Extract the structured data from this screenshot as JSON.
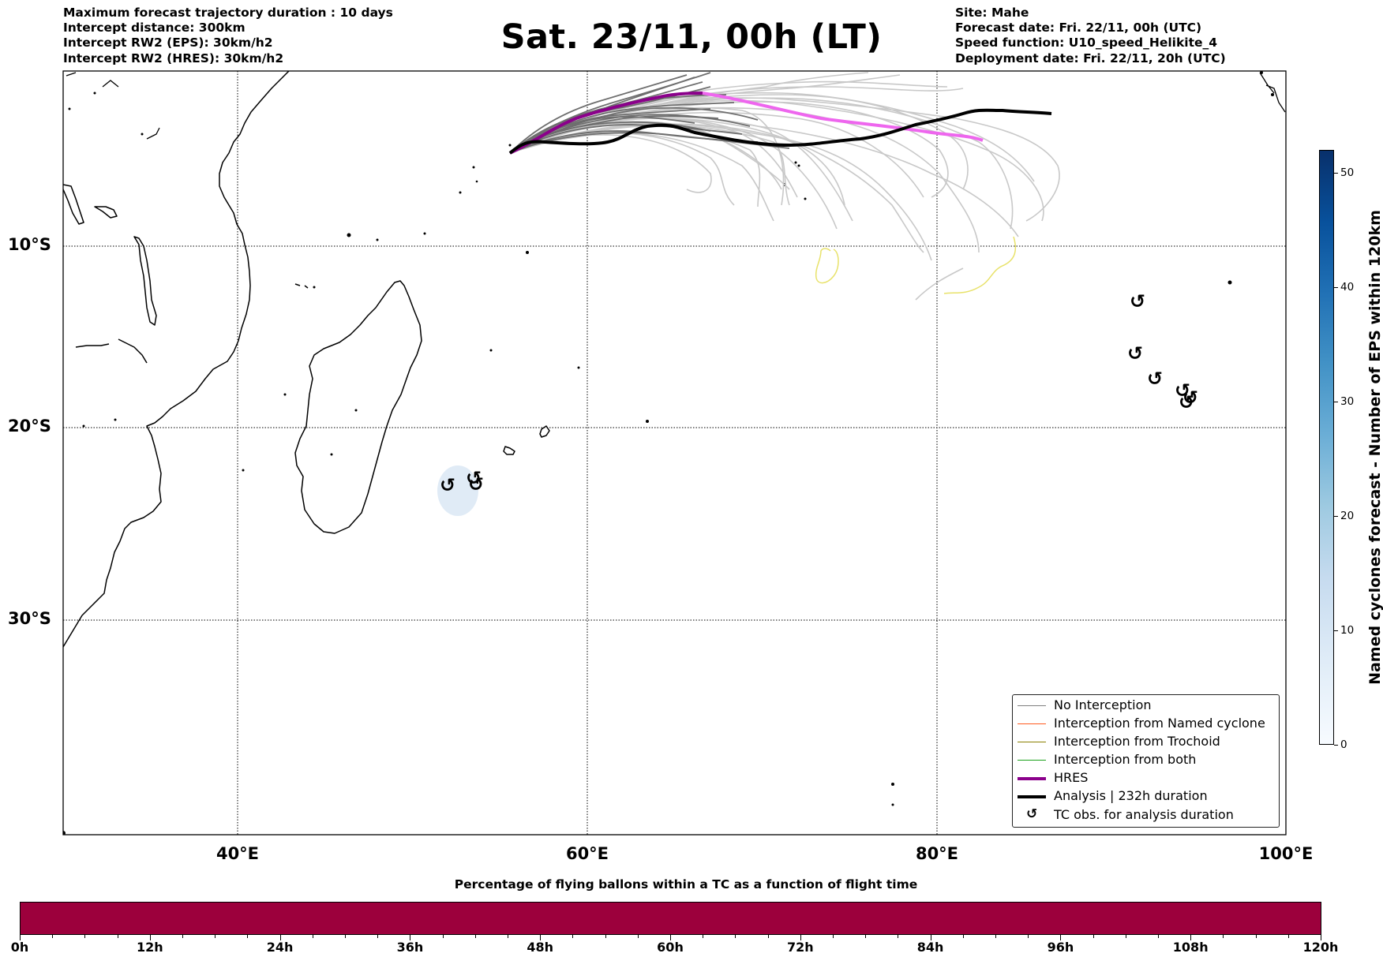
{
  "header_left": {
    "line1": "Maximum forecast trajectory duration : 10 days",
    "line2": "Intercept distance: 300km",
    "line3": "Intercept RW2 (EPS):  30km/h2",
    "line4": "Intercept RW2 (HRES): 30km/h2"
  },
  "title": "Sat. 23/11, 00h (LT)",
  "header_right": {
    "line1": "Site: Mahe",
    "line2": "Forecast date: Fri. 22/11, 00h (UTC)",
    "line3": "Speed function: U10_speed_Helikite_4",
    "line4": "Deployment date: Fri. 22/11, 20h (UTC)"
  },
  "map": {
    "lon_range": [
      30,
      100
    ],
    "lat_range": [
      -42.5,
      0.5
    ],
    "lat_labels": [
      "10°S",
      "20°S",
      "30°S"
    ],
    "lon_labels": [
      "40°E",
      "60°E",
      "80°E",
      "100°E"
    ],
    "gridlines": "dotted"
  },
  "legend": {
    "items": [
      {
        "label": "No Interception",
        "color": "#808080"
      },
      {
        "label": "Interception from Named cyclone",
        "color": "#ff5a1f"
      },
      {
        "label": "Interception from Trochoid",
        "color": "#8b8000"
      },
      {
        "label": "Interception from both",
        "color": "#1aa01a"
      },
      {
        "label": "HRES",
        "color": "#8b008b"
      },
      {
        "label": "Analysis | 232h duration",
        "color": "#000000"
      },
      {
        "label": "TC obs. for analysis duration",
        "symbol": "cyclone-symbol"
      }
    ]
  },
  "colorbar_right": {
    "label": "Named cyclones forecast - Number of EPS within 120km",
    "range": [
      0,
      52
    ],
    "ticks": [
      "0",
      "10",
      "20",
      "30",
      "40",
      "50"
    ],
    "colormap": "Blues"
  },
  "colorbar_bottom": {
    "title": "Percentage of flying ballons within a TC as a function of flight time",
    "ticks": [
      "0h",
      "12h",
      "24h",
      "36h",
      "48h",
      "60h",
      "72h",
      "84h",
      "96h",
      "108h",
      "120h"
    ],
    "range_hours": [
      0,
      120
    ],
    "fill_color": "#9c003c"
  },
  "tc_symbol": "↺"
}
